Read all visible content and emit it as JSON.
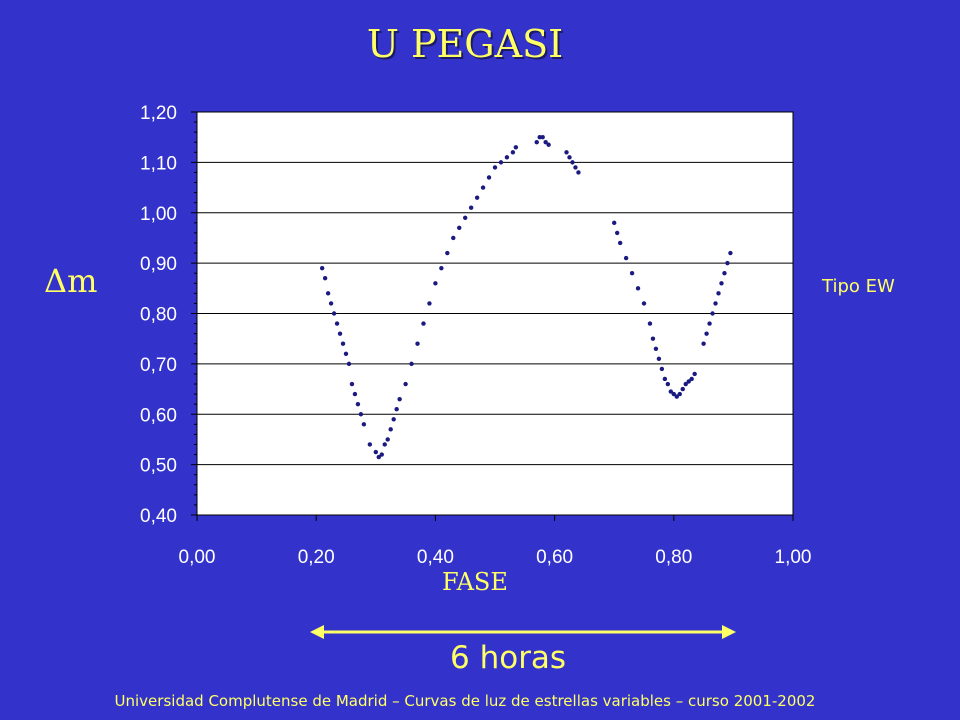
{
  "slide": {
    "title": "U PEGASI",
    "annotation": "Tipo EW",
    "duration_label": "6 horas",
    "footer": "Universidad Complutense de Madrid – Curvas de luz de estrellas variables  – curso 2001-2002"
  },
  "colors": {
    "background": "#3333cc",
    "text": "#ffff66",
    "plot_area": "#ffffff",
    "points": "#1a1a80",
    "arrow": "#ffff66"
  },
  "chart_data": {
    "type": "scatter",
    "title": "",
    "xlabel": "FASE",
    "ylabel": "Δm",
    "xlim": [
      0,
      1
    ],
    "ylim": [
      0.4,
      1.2
    ],
    "x_ticks": [
      "0,00",
      "0,20",
      "0,40",
      "0,60",
      "0,80",
      "1,00"
    ],
    "y_ticks": [
      "0,40",
      "0,50",
      "0,60",
      "0,70",
      "0,80",
      "0,90",
      "1,00",
      "1,10",
      "1,20"
    ],
    "grid": "horizontal",
    "series": [
      {
        "x": [
          0.21,
          0.215,
          0.22,
          0.225,
          0.23,
          0.235,
          0.24,
          0.245,
          0.25,
          0.255,
          0.26,
          0.265,
          0.27,
          0.275,
          0.28,
          0.29,
          0.3,
          0.305,
          0.31,
          0.315,
          0.32,
          0.325,
          0.33,
          0.335,
          0.34,
          0.35,
          0.36,
          0.37,
          0.38,
          0.39,
          0.4,
          0.41,
          0.42,
          0.43,
          0.44,
          0.45,
          0.46,
          0.47,
          0.48,
          0.49,
          0.5,
          0.51,
          0.52,
          0.53,
          0.535,
          0.57,
          0.575,
          0.58,
          0.585,
          0.59,
          0.62,
          0.625,
          0.63,
          0.635,
          0.64,
          0.7,
          0.705,
          0.71,
          0.72,
          0.73,
          0.74,
          0.75,
          0.76,
          0.765,
          0.77,
          0.775,
          0.78,
          0.785,
          0.79,
          0.795,
          0.8,
          0.805,
          0.81,
          0.815,
          0.82,
          0.825,
          0.83,
          0.835,
          0.85,
          0.855,
          0.86,
          0.865,
          0.87,
          0.875,
          0.88,
          0.885,
          0.89,
          0.895
        ],
        "y": [
          0.89,
          0.87,
          0.84,
          0.82,
          0.8,
          0.78,
          0.76,
          0.74,
          0.72,
          0.7,
          0.66,
          0.64,
          0.62,
          0.6,
          0.58,
          0.54,
          0.525,
          0.515,
          0.52,
          0.54,
          0.55,
          0.57,
          0.59,
          0.61,
          0.63,
          0.66,
          0.7,
          0.74,
          0.78,
          0.82,
          0.86,
          0.89,
          0.92,
          0.95,
          0.97,
          0.99,
          1.01,
          1.03,
          1.05,
          1.07,
          1.09,
          1.1,
          1.11,
          1.12,
          1.13,
          1.14,
          1.15,
          1.15,
          1.14,
          1.135,
          1.12,
          1.11,
          1.1,
          1.09,
          1.08,
          0.98,
          0.96,
          0.94,
          0.91,
          0.88,
          0.85,
          0.82,
          0.78,
          0.75,
          0.73,
          0.71,
          0.69,
          0.67,
          0.66,
          0.645,
          0.64,
          0.635,
          0.64,
          0.65,
          0.66,
          0.665,
          0.67,
          0.68,
          0.74,
          0.76,
          0.78,
          0.8,
          0.82,
          0.84,
          0.86,
          0.88,
          0.9,
          0.92
        ]
      }
    ]
  }
}
